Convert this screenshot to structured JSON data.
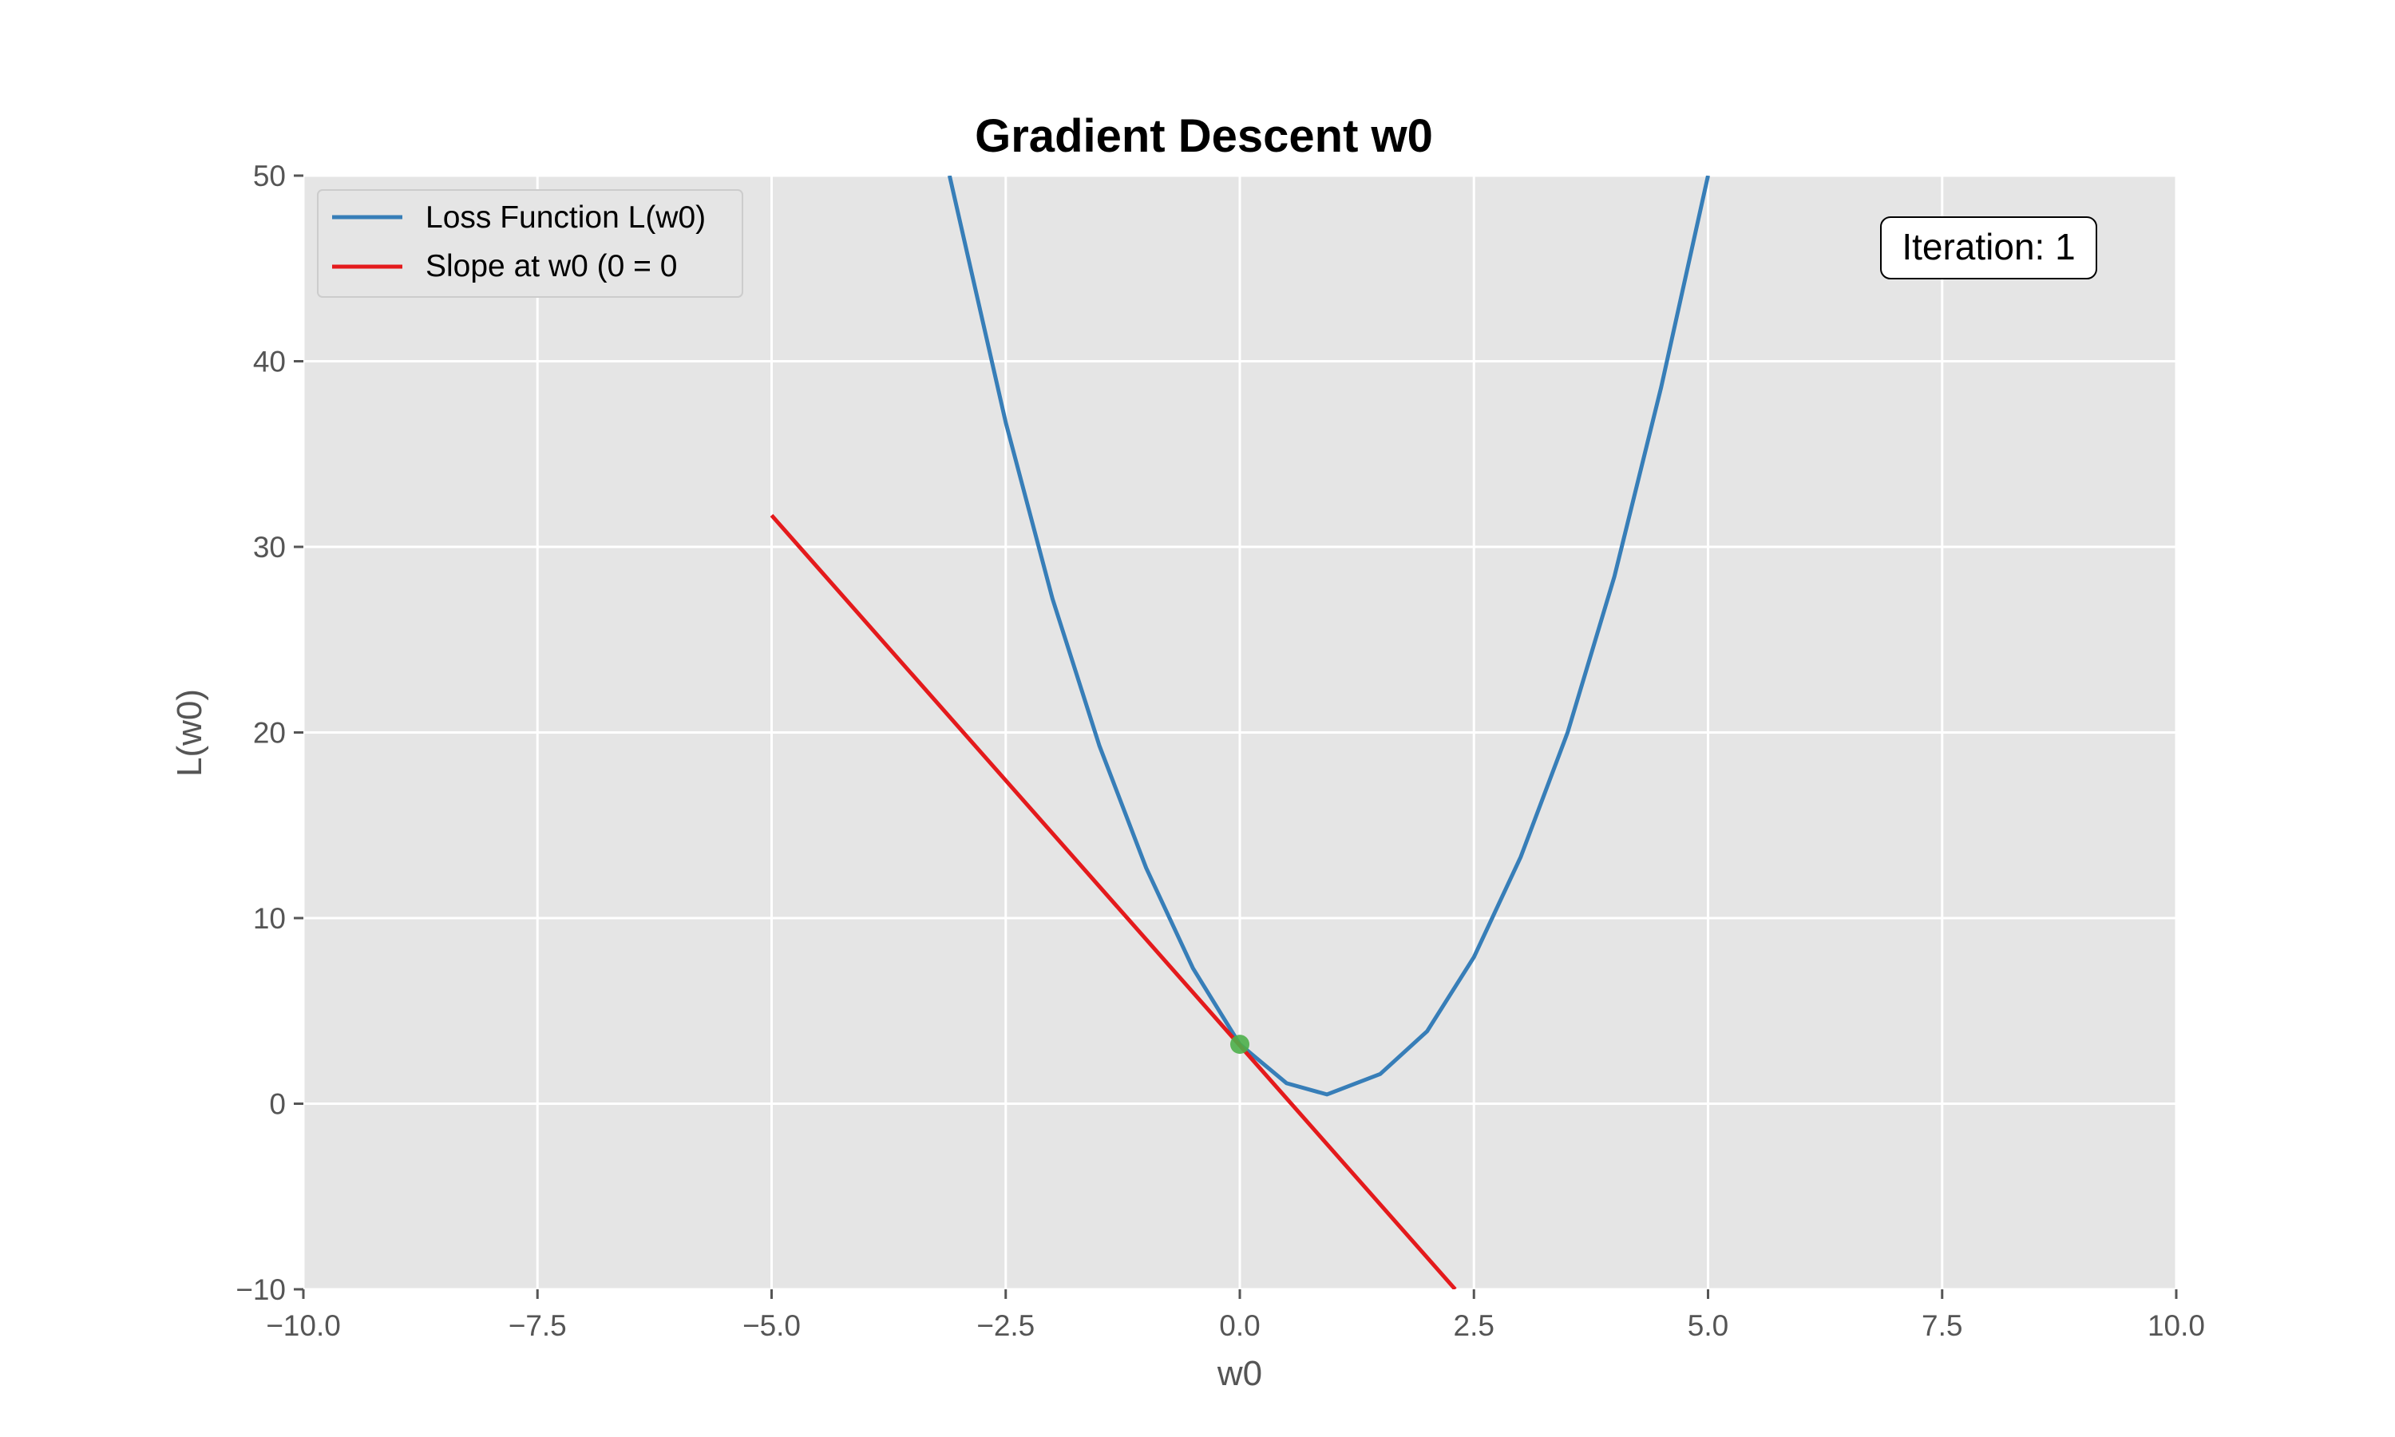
{
  "chart_data": {
    "type": "line",
    "title": "Gradient Descent w0",
    "xlabel": "w0",
    "ylabel": "L(w0)",
    "xlim": [
      -10,
      10
    ],
    "ylim": [
      -10,
      50
    ],
    "xticks": [
      -10,
      -7.5,
      -5,
      -2.5,
      0,
      2.5,
      5,
      7.5,
      10
    ],
    "xtick_labels": [
      "−10.0",
      "−7.5",
      "−5.0",
      "−2.5",
      "0.0",
      "2.5",
      "5.0",
      "7.5",
      "10.0"
    ],
    "yticks": [
      -10,
      0,
      10,
      20,
      30,
      40,
      50
    ],
    "ytick_labels": [
      "−10",
      "0",
      "10",
      "20",
      "30",
      "40",
      "50"
    ],
    "grid": true,
    "legend_position": "top-left",
    "series": [
      {
        "name": "Loss Function L(w0)",
        "color": "#377eb8",
        "x": [
          -3.1,
          -2.5,
          -2.0,
          -1.5,
          -1.0,
          -0.5,
          0.0,
          0.5,
          0.93,
          1.5,
          2.0,
          2.5,
          3.0,
          3.5,
          4.0,
          4.5,
          5.0
        ],
        "y": [
          50.0,
          36.7,
          27.2,
          19.3,
          12.7,
          7.3,
          3.2,
          1.1,
          0.5,
          1.6,
          3.9,
          7.9,
          13.3,
          20.0,
          28.4,
          38.6,
          50.0
        ]
      },
      {
        "name": "Slope at w0 (0 = 0",
        "color": "#e41a1c",
        "x": [
          -5.0,
          2.3
        ],
        "y": [
          31.7,
          -10.0
        ]
      }
    ],
    "points": [
      {
        "x": 0.0,
        "y": 3.2,
        "color": "#4daf4a"
      }
    ],
    "annotation": "Iteration: 1"
  }
}
